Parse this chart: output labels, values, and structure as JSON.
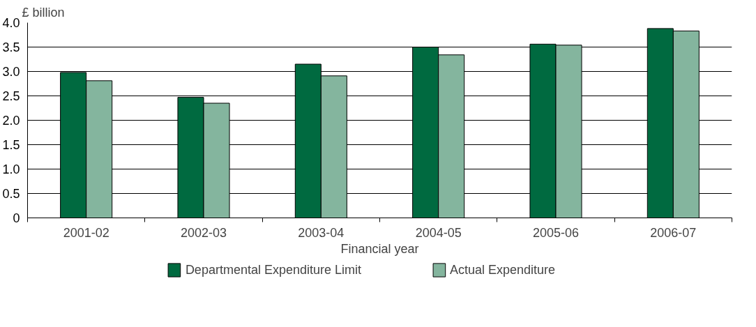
{
  "chart_data": {
    "type": "bar",
    "xlabel": "Financial year",
    "ylabel": "£ billion",
    "categories": [
      "2001-02",
      "2002-03",
      "2003-04",
      "2004-05",
      "2005-06",
      "2006-07"
    ],
    "series": [
      {
        "name": "Departmental Expenditure Limit",
        "color": "#006a40",
        "values": [
          2.98,
          2.47,
          3.15,
          3.5,
          3.56,
          3.88
        ]
      },
      {
        "name": "Actual Expenditure",
        "color": "#84b59e",
        "values": [
          2.81,
          2.35,
          2.91,
          3.34,
          3.54,
          3.83
        ]
      }
    ],
    "ylim": [
      0,
      4.0
    ],
    "yticks": [
      0,
      {
        "value": 0.5,
        "label": "0.5"
      },
      {
        "value": 1,
        "label": "1.0"
      },
      {
        "value": 1.5,
        "label": "1.5"
      },
      {
        "value": 2,
        "label": "2.0"
      },
      {
        "value": 2.5,
        "label": "2.5"
      },
      {
        "value": 3,
        "label": "3.0"
      },
      {
        "value": 3.5,
        "label": "3.5"
      },
      {
        "value": 4,
        "label": "4.0"
      }
    ],
    "grid": "y",
    "legend": "bottom"
  }
}
